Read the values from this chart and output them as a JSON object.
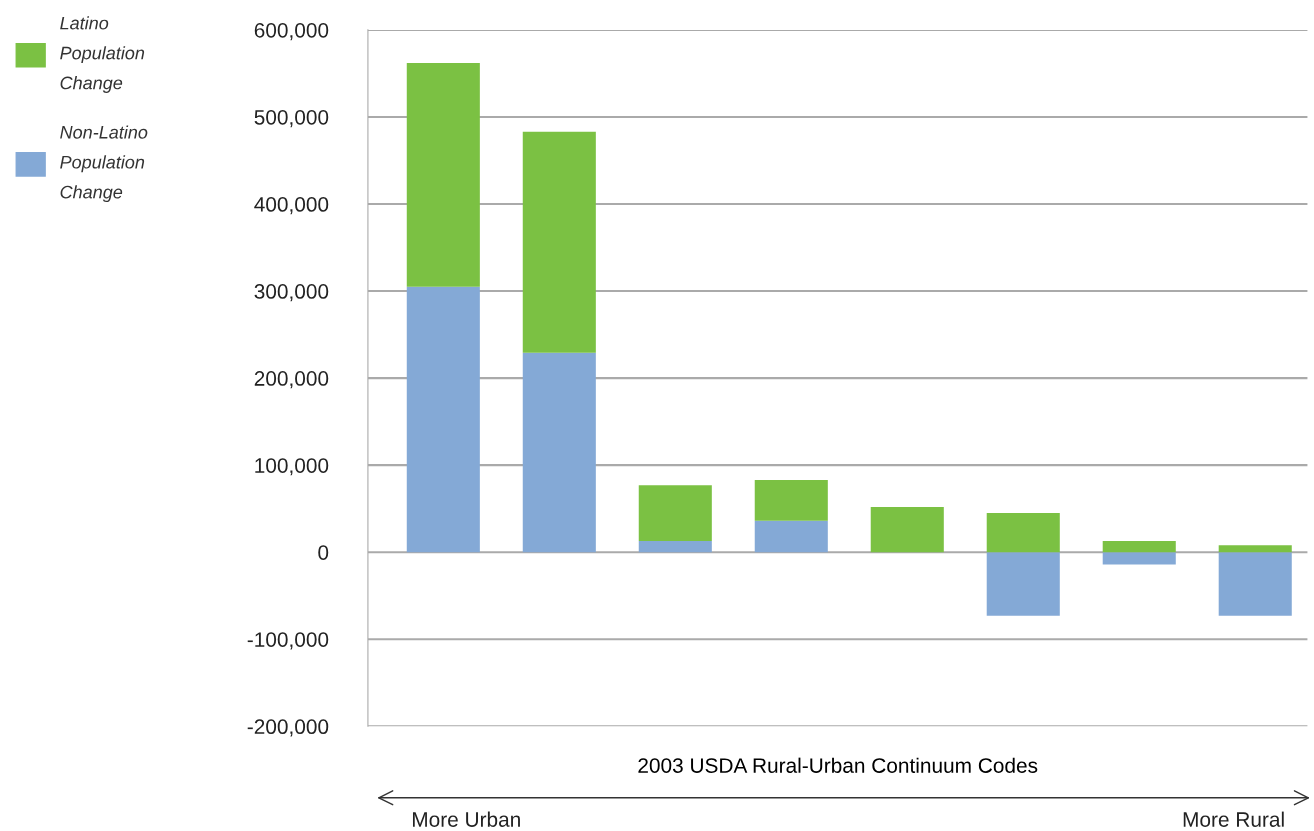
{
  "chart_data": {
    "type": "bar",
    "stacked": true,
    "xlabel": "2003 USDA Rural-Urban Continuum Codes",
    "categories": [
      null,
      null,
      null,
      null,
      null,
      null,
      null,
      null
    ],
    "series": [
      {
        "name": "Non-Latino Population Change",
        "color": "#84a9d6",
        "values": [
          305000,
          229000,
          13000,
          36000,
          0,
          -73000,
          -14000,
          -73000
        ]
      },
      {
        "name": "Latino Population Change",
        "color": "#7bc143",
        "values": [
          257000,
          254000,
          64000,
          47000,
          52000,
          45000,
          13000,
          8000
        ]
      }
    ],
    "ylim": [
      -200000,
      600000
    ],
    "yticks": [
      {
        "value": -200000,
        "label": "-200,000"
      },
      {
        "value": -100000,
        "label": "-100,000"
      },
      {
        "value": 0,
        "label": "0"
      },
      {
        "value": 100000,
        "label": "100,000"
      },
      {
        "value": 200000,
        "label": "200,000"
      },
      {
        "value": 300000,
        "label": "300,000"
      },
      {
        "value": 400000,
        "label": "400,000"
      },
      {
        "value": 500000,
        "label": "500,000"
      },
      {
        "value": 600000,
        "label": "600,000"
      }
    ],
    "grid": "y",
    "legend": "top left",
    "annotations": [
      "More Urban",
      "More Rural"
    ]
  }
}
